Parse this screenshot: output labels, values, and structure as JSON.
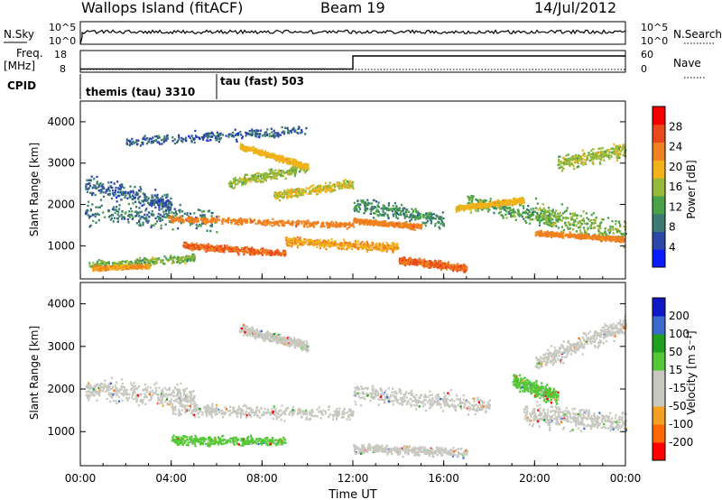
{
  "header": {
    "station": "Wallops Island (fitACF)",
    "beam": "Beam 19",
    "date": "14/Jul/2012"
  },
  "top_panel": {
    "nsky_label": "N.Sky",
    "nsearch_label": "N.Search",
    "left_ticks": [
      "10^5",
      "10^0"
    ],
    "right_ticks": [
      "10^5",
      "10^0"
    ],
    "nsky_level": 0.6
  },
  "freq_panel": {
    "label_line1": "Freq.",
    "label_line2": "[MHz]",
    "nave_label": "Nave",
    "left_ticks": [
      "18",
      "8"
    ],
    "right_ticks": [
      "60",
      "0"
    ],
    "freq_step_hour": 12,
    "freq_low": 9.5,
    "freq_high": 15.5
  },
  "cpid": {
    "label": "CPID",
    "segments": [
      {
        "name": "themis (tau) 3310",
        "start": 0
      },
      {
        "name": "tau (fast) 503",
        "start": 6
      }
    ]
  },
  "x_axis": {
    "title": "Time UT",
    "ticks": [
      "00:00",
      "04:00",
      "08:00",
      "12:00",
      "16:00",
      "20:00",
      "00:00"
    ],
    "range_hours": [
      0,
      24
    ]
  },
  "chart_data": [
    {
      "type": "heatmap",
      "name": "power",
      "ylabel": "Slant Range [km]",
      "ylim": [
        200,
        4500
      ],
      "yticks": [
        "1000",
        "2000",
        "3000",
        "4000"
      ],
      "colorbar_label": "Power [dB]",
      "colorbar_ticks": [
        "28",
        "24",
        "20",
        "16",
        "12",
        "8",
        "4"
      ],
      "colors": [
        "#0a1cff",
        "#2d47a8",
        "#3a7a70",
        "#49a248",
        "#98b83a",
        "#f2b21a",
        "#f08020",
        "#e84a1c",
        "#f00000"
      ],
      "scatter_bands": [
        {
          "t": [
            0.2,
            6
          ],
          "r0": 1800,
          "r1": 1600,
          "w": 650,
          "p": 10
        },
        {
          "t": [
            0.2,
            4
          ],
          "r0": 2500,
          "r1": 2000,
          "w": 500,
          "p": 8
        },
        {
          "t": [
            0.3,
            5
          ],
          "r0": 500,
          "r1": 700,
          "w": 250,
          "p": 16
        },
        {
          "t": [
            6.5,
            10
          ],
          "r0": 2500,
          "r1": 2900,
          "w": 300,
          "p": 18
        },
        {
          "t": [
            8.5,
            12
          ],
          "r0": 2200,
          "r1": 2500,
          "w": 250,
          "p": 20
        },
        {
          "t": [
            12,
            16
          ],
          "r0": 2000,
          "r1": 1600,
          "w": 450,
          "p": 12
        },
        {
          "t": [
            17,
            21
          ],
          "r0": 2100,
          "r1": 1600,
          "w": 500,
          "p": 14
        },
        {
          "t": [
            20,
            24
          ],
          "r0": 1800,
          "r1": 1300,
          "w": 700,
          "p": 16
        },
        {
          "t": [
            21,
            24
          ],
          "r0": 3000,
          "r1": 3300,
          "w": 400,
          "p": 18
        },
        {
          "t": [
            2,
            10
          ],
          "r0": 3500,
          "r1": 3800,
          "w": 300,
          "p": 8
        }
      ],
      "strong_bands": [
        {
          "t": [
            3.8,
            12
          ],
          "r0": 1650,
          "r1": 1500,
          "w": 180,
          "p": 26
        },
        {
          "t": [
            4.5,
            9
          ],
          "r0": 1000,
          "r1": 800,
          "w": 200,
          "p": 28
        },
        {
          "t": [
            9,
            14
          ],
          "r0": 1100,
          "r1": 950,
          "w": 250,
          "p": 24
        },
        {
          "t": [
            14,
            17
          ],
          "r0": 650,
          "r1": 450,
          "w": 200,
          "p": 28
        },
        {
          "t": [
            7,
            10
          ],
          "r0": 3400,
          "r1": 2900,
          "w": 150,
          "p": 22
        },
        {
          "t": [
            12,
            15
          ],
          "r0": 1600,
          "r1": 1450,
          "w": 150,
          "p": 26
        },
        {
          "t": [
            20,
            23.9
          ],
          "r0": 1300,
          "r1": 1150,
          "w": 150,
          "p": 26
        },
        {
          "t": [
            16.5,
            19.5
          ],
          "r0": 1900,
          "r1": 2100,
          "w": 150,
          "p": 22
        },
        {
          "t": [
            0.5,
            3
          ],
          "r0": 450,
          "r1": 500,
          "w": 120,
          "p": 24
        }
      ]
    },
    {
      "type": "heatmap",
      "name": "velocity",
      "ylabel": "Slant Range [km]",
      "ylim": [
        200,
        4500
      ],
      "yticks": [
        "1000",
        "2000",
        "3000",
        "4000"
      ],
      "colorbar_label": "Velocity [m s⁻¹]",
      "colorbar_ticks": [
        "200",
        "100",
        "50",
        "15",
        "-15",
        "-50",
        "-100",
        "-200"
      ],
      "colors": [
        "#ff0000",
        "#ff6a00",
        "#f4a020",
        "#c8c8c0",
        "#c8c8c0",
        "#55c838",
        "#20a020",
        "#3a6ad0",
        "#1018c8"
      ],
      "bands": [
        {
          "t": [
            4,
            12
          ],
          "r0": 1500,
          "r1": 1400,
          "w": 350,
          "v": 0
        },
        {
          "t": [
            12,
            18
          ],
          "r0": 1900,
          "r1": 1600,
          "w": 500,
          "v": 0
        },
        {
          "t": [
            4,
            9
          ],
          "r0": 800,
          "r1": 750,
          "w": 250,
          "v": 40
        },
        {
          "t": [
            7,
            10
          ],
          "r0": 3400,
          "r1": 3000,
          "w": 250,
          "v": 0
        },
        {
          "t": [
            0.2,
            5
          ],
          "r0": 2000,
          "r1": 1800,
          "w": 600,
          "v": 0
        },
        {
          "t": [
            12,
            17
          ],
          "r0": 600,
          "r1": 500,
          "w": 250,
          "v": 0
        },
        {
          "t": [
            19.5,
            24
          ],
          "r0": 1400,
          "r1": 1200,
          "w": 600,
          "v": 0
        },
        {
          "t": [
            20,
            24
          ],
          "r0": 2600,
          "r1": 3500,
          "w": 500,
          "v": 0
        },
        {
          "t": [
            19,
            21
          ],
          "r0": 2200,
          "r1": 1800,
          "w": 400,
          "v": 40
        }
      ]
    }
  ]
}
